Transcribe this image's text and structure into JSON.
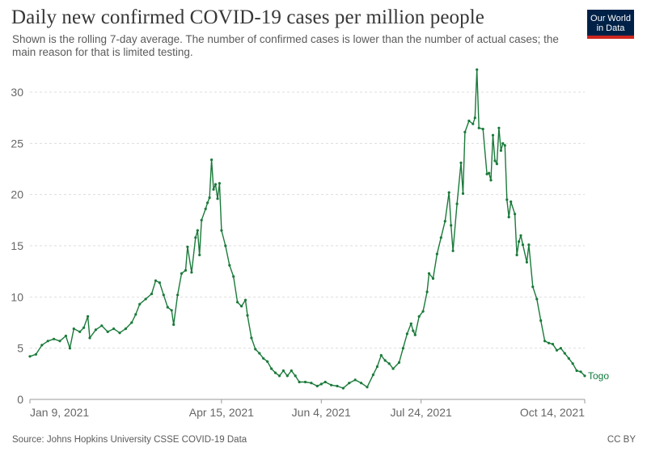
{
  "header": {
    "title": "Daily new confirmed COVID-19 cases per million people",
    "subtitle": "Shown is the rolling 7-day average. The number of confirmed cases is lower than the number of actual cases; the main reason for that is limited testing.",
    "logo_line1": "Our World",
    "logo_line2": "in Data"
  },
  "footer": {
    "source": "Source: Johns Hopkins University CSSE COVID-19 Data",
    "license": "CC BY"
  },
  "colors": {
    "series": "#1a7a3a",
    "grid": "#dddddd",
    "logo_bg": "#002147",
    "logo_bar": "#ce261e"
  },
  "chart_data": {
    "type": "line",
    "title": "Daily new confirmed COVID-19 cases per million people",
    "xlabel": "",
    "ylabel": "",
    "ylim": [
      0,
      32
    ],
    "yticks": [
      0,
      5,
      10,
      15,
      20,
      25,
      30
    ],
    "grid": true,
    "xlim": [
      "2021-01-09",
      "2021-10-14"
    ],
    "xticks": [
      {
        "date": "2021-01-09",
        "label": "Jan 9, 2021"
      },
      {
        "date": "2021-04-15",
        "label": "Apr 15, 2021"
      },
      {
        "date": "2021-06-04",
        "label": "Jun 4, 2021"
      },
      {
        "date": "2021-07-24",
        "label": "Jul 24, 2021"
      },
      {
        "date": "2021-10-14",
        "label": "Oct 14, 2021"
      }
    ],
    "series": [
      {
        "name": "Togo",
        "color": "#1a7a3a",
        "points": [
          [
            "2021-01-09",
            4.2
          ],
          [
            "2021-01-12",
            4.4
          ],
          [
            "2021-01-15",
            5.3
          ],
          [
            "2021-01-18",
            5.7
          ],
          [
            "2021-01-21",
            5.9
          ],
          [
            "2021-01-24",
            5.7
          ],
          [
            "2021-01-27",
            6.2
          ],
          [
            "2021-01-29",
            5.0
          ],
          [
            "2021-01-31",
            6.9
          ],
          [
            "2021-02-03",
            6.6
          ],
          [
            "2021-02-05",
            7.0
          ],
          [
            "2021-02-07",
            8.1
          ],
          [
            "2021-02-08",
            6.0
          ],
          [
            "2021-02-11",
            6.8
          ],
          [
            "2021-02-14",
            7.2
          ],
          [
            "2021-02-17",
            6.6
          ],
          [
            "2021-02-20",
            6.9
          ],
          [
            "2021-02-23",
            6.5
          ],
          [
            "2021-02-26",
            6.9
          ],
          [
            "2021-03-01",
            7.5
          ],
          [
            "2021-03-03",
            8.3
          ],
          [
            "2021-03-05",
            9.3
          ],
          [
            "2021-03-08",
            9.8
          ],
          [
            "2021-03-11",
            10.3
          ],
          [
            "2021-03-13",
            11.6
          ],
          [
            "2021-03-15",
            11.4
          ],
          [
            "2021-03-17",
            10.2
          ],
          [
            "2021-03-19",
            9.0
          ],
          [
            "2021-03-21",
            8.7
          ],
          [
            "2021-03-22",
            7.3
          ],
          [
            "2021-03-24",
            10.2
          ],
          [
            "2021-03-26",
            12.3
          ],
          [
            "2021-03-28",
            12.6
          ],
          [
            "2021-03-29",
            14.9
          ],
          [
            "2021-03-31",
            12.4
          ],
          [
            "2021-04-02",
            15.8
          ],
          [
            "2021-04-03",
            16.5
          ],
          [
            "2021-04-04",
            14.1
          ],
          [
            "2021-04-05",
            17.5
          ],
          [
            "2021-04-07",
            18.6
          ],
          [
            "2021-04-08",
            19.2
          ],
          [
            "2021-04-09",
            19.7
          ],
          [
            "2021-04-10",
            23.4
          ],
          [
            "2021-04-11",
            20.5
          ],
          [
            "2021-04-12",
            21.0
          ],
          [
            "2021-04-13",
            19.6
          ],
          [
            "2021-04-14",
            21.1
          ],
          [
            "2021-04-15",
            16.5
          ],
          [
            "2021-04-17",
            15.0
          ],
          [
            "2021-04-19",
            13.1
          ],
          [
            "2021-04-21",
            12.0
          ],
          [
            "2021-04-23",
            9.5
          ],
          [
            "2021-04-25",
            9.1
          ],
          [
            "2021-04-27",
            9.7
          ],
          [
            "2021-04-28",
            8.2
          ],
          [
            "2021-04-30",
            6.0
          ],
          [
            "2021-05-02",
            4.9
          ],
          [
            "2021-05-04",
            4.5
          ],
          [
            "2021-05-06",
            4.0
          ],
          [
            "2021-05-08",
            3.7
          ],
          [
            "2021-05-10",
            3.0
          ],
          [
            "2021-05-12",
            2.6
          ],
          [
            "2021-05-14",
            2.3
          ],
          [
            "2021-05-16",
            2.8
          ],
          [
            "2021-05-18",
            2.3
          ],
          [
            "2021-05-20",
            2.8
          ],
          [
            "2021-05-22",
            2.3
          ],
          [
            "2021-05-24",
            1.7
          ],
          [
            "2021-05-27",
            1.7
          ],
          [
            "2021-05-30",
            1.6
          ],
          [
            "2021-06-02",
            1.3
          ],
          [
            "2021-06-04",
            1.5
          ],
          [
            "2021-06-06",
            1.7
          ],
          [
            "2021-06-09",
            1.4
          ],
          [
            "2021-06-12",
            1.3
          ],
          [
            "2021-06-15",
            1.1
          ],
          [
            "2021-06-18",
            1.6
          ],
          [
            "2021-06-21",
            1.9
          ],
          [
            "2021-06-24",
            1.6
          ],
          [
            "2021-06-27",
            1.2
          ],
          [
            "2021-06-30",
            2.4
          ],
          [
            "2021-07-02",
            3.2
          ],
          [
            "2021-07-04",
            4.3
          ],
          [
            "2021-07-06",
            3.8
          ],
          [
            "2021-07-08",
            3.5
          ],
          [
            "2021-07-10",
            3.0
          ],
          [
            "2021-07-13",
            3.6
          ],
          [
            "2021-07-15",
            5.0
          ],
          [
            "2021-07-17",
            6.4
          ],
          [
            "2021-07-19",
            7.4
          ],
          [
            "2021-07-20",
            6.7
          ],
          [
            "2021-07-21",
            6.3
          ],
          [
            "2021-07-23",
            8.1
          ],
          [
            "2021-07-25",
            8.6
          ],
          [
            "2021-07-27",
            10.5
          ],
          [
            "2021-07-28",
            12.3
          ],
          [
            "2021-07-30",
            11.8
          ],
          [
            "2021-08-01",
            14.2
          ],
          [
            "2021-08-03",
            15.8
          ],
          [
            "2021-08-05",
            17.4
          ],
          [
            "2021-08-07",
            20.2
          ],
          [
            "2021-08-08",
            17.0
          ],
          [
            "2021-08-09",
            14.5
          ],
          [
            "2021-08-11",
            19.1
          ],
          [
            "2021-08-13",
            23.1
          ],
          [
            "2021-08-14",
            20.1
          ],
          [
            "2021-08-15",
            26.1
          ],
          [
            "2021-08-17",
            27.2
          ],
          [
            "2021-08-19",
            26.9
          ],
          [
            "2021-08-20",
            27.5
          ],
          [
            "2021-08-21",
            32.2
          ],
          [
            "2021-08-22",
            26.5
          ],
          [
            "2021-08-24",
            26.4
          ],
          [
            "2021-08-26",
            22.0
          ],
          [
            "2021-08-27",
            22.1
          ],
          [
            "2021-08-28",
            21.4
          ],
          [
            "2021-08-29",
            25.8
          ],
          [
            "2021-08-30",
            23.3
          ],
          [
            "2021-08-31",
            23.0
          ],
          [
            "2021-09-01",
            26.5
          ],
          [
            "2021-09-02",
            24.3
          ],
          [
            "2021-09-03",
            25.0
          ],
          [
            "2021-09-04",
            24.8
          ],
          [
            "2021-09-05",
            19.5
          ],
          [
            "2021-09-06",
            17.8
          ],
          [
            "2021-09-07",
            19.3
          ],
          [
            "2021-09-09",
            18.1
          ],
          [
            "2021-09-10",
            14.1
          ],
          [
            "2021-09-11",
            15.4
          ],
          [
            "2021-09-12",
            16.0
          ],
          [
            "2021-09-13",
            15.1
          ],
          [
            "2021-09-15",
            13.4
          ],
          [
            "2021-09-16",
            15.1
          ],
          [
            "2021-09-18",
            11.0
          ],
          [
            "2021-09-20",
            9.8
          ],
          [
            "2021-09-22",
            7.7
          ],
          [
            "2021-09-24",
            5.7
          ],
          [
            "2021-09-26",
            5.5
          ],
          [
            "2021-09-28",
            5.4
          ],
          [
            "2021-09-30",
            4.8
          ],
          [
            "2021-10-02",
            5.0
          ],
          [
            "2021-10-04",
            4.5
          ],
          [
            "2021-10-06",
            4.0
          ],
          [
            "2021-10-08",
            3.5
          ],
          [
            "2021-10-10",
            2.8
          ],
          [
            "2021-10-12",
            2.7
          ],
          [
            "2021-10-14",
            2.3
          ]
        ]
      }
    ]
  }
}
